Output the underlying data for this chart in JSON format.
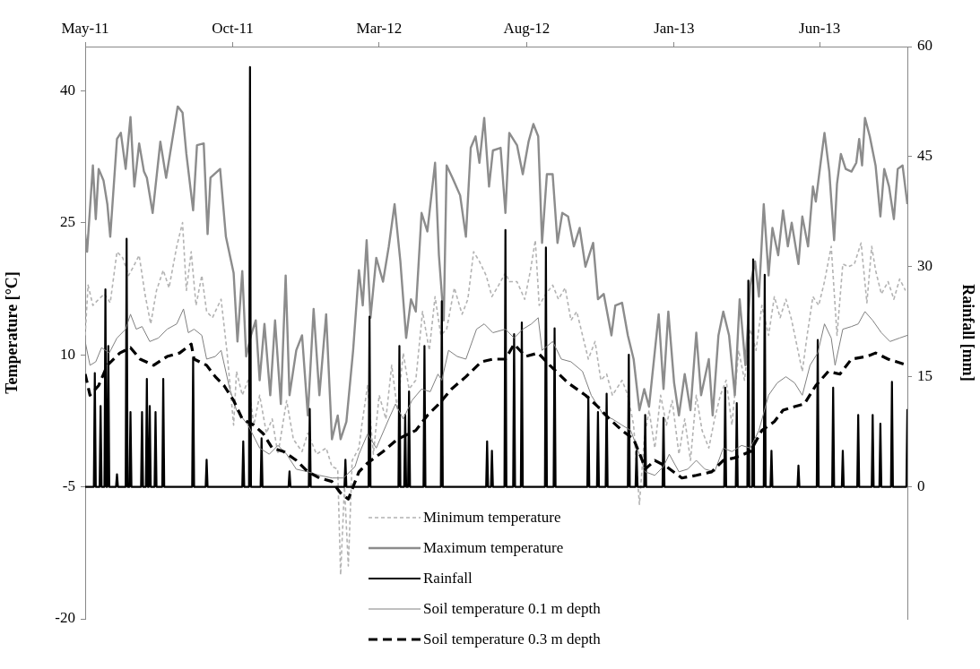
{
  "chart_data": {
    "type": "line",
    "xlabel": null,
    "ylabel": "Temperature [°C]",
    "y2label": "Rainfall [mm]",
    "xlim": [
      "2011-05-01",
      "2013-08-31"
    ],
    "xticks": [
      {
        "value": "2011-05-01",
        "label": "May-11"
      },
      {
        "value": "2011-10-01",
        "label": "Oct-11"
      },
      {
        "value": "2012-03-01",
        "label": "Mar-12"
      },
      {
        "value": "2012-08-01",
        "label": "Aug-12"
      },
      {
        "value": "2013-01-01",
        "label": "Jan-13"
      },
      {
        "value": "2013-06-01",
        "label": "Jun-13"
      }
    ],
    "ylim": [
      -20,
      45
    ],
    "yticks": [
      -20,
      -5,
      10,
      25,
      40
    ],
    "y2lim": [
      -18,
      60
    ],
    "y2ticks": [
      0,
      15,
      30,
      45,
      60
    ],
    "grid": false,
    "legend": "bottom",
    "series": [
      {
        "name": "Minimum temperature",
        "color": "#b3b3b3",
        "line_style": "dashed",
        "x": [
          "2011-05-01",
          "2011-05-04",
          "2011-05-09",
          "2011-05-15",
          "2011-05-21",
          "2011-05-27",
          "2011-06-03",
          "2011-06-09",
          "2011-06-15",
          "2011-06-20",
          "2011-06-26",
          "2011-07-02",
          "2011-07-08",
          "2011-07-14",
          "2011-07-21",
          "2011-07-27",
          "2011-08-04",
          "2011-08-10",
          "2011-08-14",
          "2011-08-19",
          "2011-08-24",
          "2011-08-30",
          "2011-09-04",
          "2011-09-10",
          "2011-09-19",
          "2011-09-25",
          "2011-10-02",
          "2011-10-05",
          "2011-10-11",
          "2011-10-17",
          "2011-10-23",
          "2011-10-29",
          "2011-11-05",
          "2011-11-11",
          "2011-11-17",
          "2011-11-26",
          "2011-12-03",
          "2011-12-12",
          "2011-12-18",
          "2011-12-27",
          "2012-01-06",
          "2012-01-12",
          "2012-01-18",
          "2012-01-21",
          "2012-01-25",
          "2012-01-29",
          "2012-02-02",
          "2012-02-09",
          "2012-02-12",
          "2012-02-18",
          "2012-02-24",
          "2012-03-01",
          "2012-03-08",
          "2012-03-14",
          "2012-03-20",
          "2012-03-26",
          "2012-04-01",
          "2012-04-08",
          "2012-04-15",
          "2012-04-22",
          "2012-04-28",
          "2012-05-04",
          "2012-05-10",
          "2012-05-18",
          "2012-05-26",
          "2012-06-01",
          "2012-06-07",
          "2012-06-13",
          "2012-06-20",
          "2012-06-26",
          "2012-07-03",
          "2012-07-10",
          "2012-07-14",
          "2012-07-22",
          "2012-07-30",
          "2012-08-05",
          "2012-08-10",
          "2012-08-14",
          "2012-08-21",
          "2012-08-28",
          "2012-09-03",
          "2012-09-10",
          "2012-09-16",
          "2012-09-22",
          "2012-09-28",
          "2012-10-04",
          "2012-10-11",
          "2012-10-17",
          "2012-10-23",
          "2012-10-29",
          "2012-11-08",
          "2012-11-14",
          "2012-11-20",
          "2012-11-26",
          "2012-12-01",
          "2012-12-06",
          "2012-12-12",
          "2012-12-18",
          "2012-12-24",
          "2012-12-30",
          "2013-01-06",
          "2013-01-12",
          "2013-01-18",
          "2013-01-24",
          "2013-01-30",
          "2013-02-06",
          "2013-02-12",
          "2013-02-18",
          "2013-02-24",
          "2013-03-02",
          "2013-03-09",
          "2013-03-15",
          "2013-03-21",
          "2013-03-27",
          "2013-04-02",
          "2013-04-09",
          "2013-04-15",
          "2013-04-21",
          "2013-04-27",
          "2013-05-03",
          "2013-05-10",
          "2013-05-14",
          "2013-05-19",
          "2013-05-25",
          "2013-05-31",
          "2013-06-06",
          "2013-06-13",
          "2013-06-19",
          "2013-06-25",
          "2013-07-01",
          "2013-07-07",
          "2013-07-14",
          "2013-07-20",
          "2013-07-25",
          "2013-07-29",
          "2013-08-04",
          "2013-08-11",
          "2013-08-17",
          "2013-08-23",
          "2013-08-29"
        ],
        "values": [
          12.2,
          17.9,
          15.6,
          16.3,
          16.9,
          15.9,
          21.7,
          21,
          19,
          20,
          21.3,
          16.9,
          13.5,
          17.3,
          19.6,
          17.6,
          22.3,
          25,
          17.3,
          21.7,
          15.6,
          19,
          14.9,
          14.2,
          16.3,
          10.5,
          2,
          8.1,
          5.4,
          7.1,
          2,
          5.4,
          1.1,
          2.7,
          -1.3,
          4.8,
          0.4,
          -1,
          1.1,
          -1.3,
          -0.6,
          -2.7,
          -3,
          -15,
          -5,
          -14,
          -2,
          -0.6,
          2,
          6.5,
          -1.3,
          5.4,
          2.7,
          8.8,
          3.7,
          10.2,
          6.1,
          7.1,
          14.9,
          10.5,
          16.6,
          12.2,
          12.9,
          17.6,
          14.6,
          16.3,
          21.7,
          20.6,
          19,
          16.6,
          17.9,
          19.3,
          18.3,
          18.3,
          16.3,
          19.6,
          23,
          15.6,
          16.9,
          17.9,
          16.3,
          17.6,
          13.9,
          14.9,
          12.2,
          9.5,
          11.5,
          7.1,
          7.8,
          5.4,
          7.1,
          5.4,
          2,
          -7,
          0.4,
          3.7,
          -0.6,
          5.4,
          2,
          4.8,
          -1.3,
          2.7,
          -2,
          5.4,
          1.4,
          -0.6,
          2.7,
          5.4,
          7.1,
          2,
          10.5,
          7.1,
          12.9,
          10.5,
          15.6,
          12.2,
          16.6,
          14.2,
          16.3,
          13.9,
          10.2,
          8.1,
          12.2,
          16.6,
          15.6,
          18.3,
          22.3,
          12.2,
          20.3,
          20,
          20.3,
          22.7,
          15.9,
          22.3,
          19.6,
          16.9,
          18.3,
          16.3,
          18.6,
          17.3
        ]
      },
      {
        "name": "Maximum temperature",
        "color": "#8c8c8c",
        "line_style": "solid",
        "x": [
          "2011-05-01",
          "2011-05-03",
          "2011-05-09",
          "2011-05-12",
          "2011-05-15",
          "2011-05-20",
          "2011-05-24",
          "2011-05-27",
          "2011-06-03",
          "2011-06-07",
          "2011-06-12",
          "2011-06-17",
          "2011-06-21",
          "2011-06-26",
          "2011-07-01",
          "2011-07-04",
          "2011-07-10",
          "2011-07-18",
          "2011-07-24",
          "2011-07-28",
          "2011-08-05",
          "2011-08-10",
          "2011-08-14",
          "2011-08-21",
          "2011-08-25",
          "2011-09-01",
          "2011-09-05",
          "2011-09-08",
          "2011-09-18",
          "2011-09-24",
          "2011-10-02",
          "2011-10-06",
          "2011-10-11",
          "2011-10-15",
          "2011-10-20",
          "2011-10-25",
          "2011-10-29",
          "2011-11-03",
          "2011-11-09",
          "2011-11-14",
          "2011-11-20",
          "2011-11-25",
          "2011-11-29",
          "2011-12-06",
          "2011-12-12",
          "2011-12-18",
          "2011-12-24",
          "2011-12-30",
          "2012-01-06",
          "2012-01-12",
          "2012-01-18",
          "2012-01-21",
          "2012-01-27",
          "2012-02-03",
          "2012-02-09",
          "2012-02-13",
          "2012-02-17",
          "2012-02-21",
          "2012-02-27",
          "2012-03-05",
          "2012-03-11",
          "2012-03-17",
          "2012-03-23",
          "2012-03-29",
          "2012-04-03",
          "2012-04-08",
          "2012-04-14",
          "2012-04-20",
          "2012-04-28",
          "2012-05-02",
          "2012-05-07",
          "2012-05-10",
          "2012-05-16",
          "2012-05-24",
          "2012-05-30",
          "2012-06-04",
          "2012-06-09",
          "2012-06-13",
          "2012-06-18",
          "2012-06-23",
          "2012-06-27",
          "2012-07-05",
          "2012-07-10",
          "2012-07-14",
          "2012-07-22",
          "2012-07-28",
          "2012-08-03",
          "2012-08-08",
          "2012-08-13",
          "2012-08-17",
          "2012-08-22",
          "2012-08-28",
          "2012-09-02",
          "2012-09-07",
          "2012-09-13",
          "2012-09-19",
          "2012-09-25",
          "2012-10-01",
          "2012-10-09",
          "2012-10-14",
          "2012-10-20",
          "2012-10-28",
          "2012-11-01",
          "2012-11-08",
          "2012-11-14",
          "2012-11-20",
          "2012-11-26",
          "2012-12-01",
          "2012-12-06",
          "2012-12-16",
          "2012-12-21",
          "2012-12-26",
          "2013-01-01",
          "2013-01-06",
          "2013-01-12",
          "2013-01-18",
          "2013-01-24",
          "2013-01-29",
          "2013-02-06",
          "2013-02-10",
          "2013-02-16",
          "2013-02-21",
          "2013-02-27",
          "2013-03-05",
          "2013-03-10",
          "2013-03-16",
          "2013-03-21",
          "2013-03-26",
          "2013-03-30",
          "2013-04-04",
          "2013-04-09",
          "2013-04-13",
          "2013-04-19",
          "2013-04-24",
          "2013-04-29",
          "2013-05-03",
          "2013-05-10",
          "2013-05-14",
          "2013-05-20",
          "2013-05-25",
          "2013-05-28",
          "2013-06-02",
          "2013-06-06",
          "2013-06-11",
          "2013-06-16",
          "2013-06-19",
          "2013-06-23",
          "2013-06-28",
          "2013-07-04",
          "2013-07-09",
          "2013-07-12",
          "2013-07-15",
          "2013-07-18",
          "2013-07-23",
          "2013-07-29",
          "2013-08-03",
          "2013-08-07",
          "2013-08-12",
          "2013-08-17",
          "2013-08-21",
          "2013-08-26",
          "2013-08-31"
        ],
        "values": [
          23.7,
          21.7,
          31.5,
          25.4,
          31.1,
          29.8,
          27.1,
          23.4,
          34.5,
          35.2,
          31.1,
          37,
          29.1,
          34,
          30.8,
          30.1,
          26.1,
          34.2,
          30.1,
          32.8,
          38.2,
          37.5,
          32.8,
          26.4,
          33.8,
          34,
          23.7,
          30.1,
          31.1,
          23.4,
          19.3,
          11.5,
          19.5,
          9.8,
          12.2,
          13.9,
          7.1,
          13.5,
          5.4,
          13.9,
          4.4,
          19,
          5.4,
          10.5,
          12.2,
          3.1,
          15.2,
          5.4,
          14.6,
          0.4,
          3.1,
          0.4,
          2.4,
          10.5,
          19.6,
          15.6,
          23,
          14.2,
          21,
          18.3,
          22.3,
          27.1,
          20.6,
          11.9,
          16.3,
          14.9,
          26.1,
          24,
          31.8,
          21.3,
          13.9,
          31.5,
          30.1,
          28.1,
          23.4,
          33.5,
          34.8,
          31.8,
          36.9,
          29.1,
          33.2,
          33.5,
          26.1,
          35.2,
          33.8,
          30.5,
          34.2,
          36.2,
          34.8,
          22.7,
          30.5,
          30.5,
          22.7,
          26.1,
          25.7,
          22.3,
          24.4,
          20,
          22.7,
          16.3,
          16.9,
          12.2,
          15.6,
          15.9,
          12.2,
          9.5,
          3.7,
          6.1,
          4.1,
          14.6,
          6.1,
          14.9,
          6.8,
          3.1,
          7.8,
          3.7,
          12.5,
          5.4,
          9.5,
          3.1,
          12.2,
          14.9,
          12.2,
          5.4,
          16.3,
          8.8,
          17.9,
          20.6,
          16.6,
          27.1,
          19,
          24.4,
          21.3,
          26.4,
          22.3,
          25,
          20.3,
          25.7,
          22.3,
          29.1,
          27.4,
          31.8,
          35.2,
          30.8,
          23,
          29.4,
          32.8,
          31.1,
          30.8,
          31.8,
          34.5,
          31.5,
          36.9,
          34.8,
          31.5,
          25.7,
          31.1,
          29.1,
          25.4,
          31.1,
          31.5,
          27.1
        ]
      },
      {
        "name": "Rainfall",
        "color": "#000000",
        "line_style": "solid",
        "axis": "y2",
        "x": [
          "2011-05-01",
          "2011-05-10",
          "2011-05-11",
          "2011-05-12",
          "2011-05-16",
          "2011-05-17",
          "2011-05-18",
          "2011-05-21",
          "2011-05-22",
          "2011-05-23",
          "2011-05-24",
          "2011-05-25",
          "2011-05-26",
          "2011-06-02",
          "2011-06-03",
          "2011-06-04",
          "2011-06-12",
          "2011-06-13",
          "2011-06-14",
          "2011-06-16",
          "2011-06-17",
          "2011-06-18",
          "2011-06-28",
          "2011-06-29",
          "2011-06-30",
          "2011-07-03",
          "2011-07-04",
          "2011-07-05",
          "2011-07-06",
          "2011-07-07",
          "2011-07-08",
          "2011-07-12",
          "2011-07-13",
          "2011-07-14",
          "2011-07-20",
          "2011-07-21",
          "2011-07-22",
          "2011-08-20",
          "2011-08-21",
          "2011-08-22",
          "2011-09-03",
          "2011-09-04",
          "2011-09-05",
          "2011-10-11",
          "2011-10-12",
          "2011-10-13",
          "2011-10-18",
          "2011-10-19",
          "2011-10-20",
          "2011-10-30",
          "2011-10-31",
          "2011-11-01",
          "2011-11-28",
          "2011-11-29",
          "2011-11-30",
          "2011-12-19",
          "2011-12-20",
          "2011-12-21",
          "2012-01-25",
          "2012-01-26",
          "2012-01-27",
          "2012-02-19",
          "2012-02-20",
          "2012-02-21",
          "2012-03-21",
          "2012-03-22",
          "2012-03-23",
          "2012-03-27",
          "2012-03-28",
          "2012-03-29",
          "2012-03-31",
          "2012-04-01",
          "2012-04-02",
          "2012-04-16",
          "2012-04-17",
          "2012-04-18",
          "2012-05-04",
          "2012-05-05",
          "2012-05-06",
          "2012-06-20",
          "2012-06-21",
          "2012-06-22",
          "2012-06-25",
          "2012-06-26",
          "2012-06-27",
          "2012-07-09",
          "2012-07-10",
          "2012-07-11",
          "2012-07-18",
          "2012-07-19",
          "2012-07-20",
          "2012-07-26",
          "2012-07-27",
          "2012-07-28",
          "2012-08-20",
          "2012-08-21",
          "2012-08-22",
          "2012-08-29",
          "2012-08-30",
          "2012-08-31",
          "2012-10-03",
          "2012-10-04",
          "2012-10-05",
          "2012-10-13",
          "2012-10-14",
          "2012-10-15",
          "2012-10-22",
          "2012-10-23",
          "2012-10-24",
          "2012-11-14",
          "2012-11-15",
          "2012-11-16",
          "2012-11-22",
          "2012-11-23",
          "2012-11-24",
          "2012-12-01",
          "2012-12-02",
          "2012-12-03",
          "2012-12-20",
          "2012-12-21",
          "2012-12-22",
          "2013-02-22",
          "2013-02-23",
          "2013-02-24",
          "2013-03-06",
          "2013-03-07",
          "2013-03-08",
          "2013-03-18",
          "2013-03-19",
          "2013-03-20",
          "2013-03-23",
          "2013-03-24",
          "2013-03-25",
          "2013-04-04",
          "2013-04-05",
          "2013-04-06",
          "2013-04-11",
          "2013-04-12",
          "2013-04-13",
          "2013-05-09",
          "2013-05-10",
          "2013-05-11",
          "2013-05-29",
          "2013-05-30",
          "2013-05-31",
          "2013-06-14",
          "2013-06-15",
          "2013-06-16",
          "2013-06-24",
          "2013-06-25",
          "2013-06-26",
          "2013-07-10",
          "2013-07-11",
          "2013-07-12",
          "2013-07-25",
          "2013-07-26",
          "2013-07-27",
          "2013-08-02",
          "2013-08-03",
          "2013-08-04",
          "2013-08-14",
          "2013-08-15",
          "2013-08-16",
          "2013-08-30",
          "2013-08-31"
        ],
        "values": [
          0,
          0,
          15.5,
          0,
          0,
          11,
          0,
          0,
          26.9,
          0,
          0,
          19.2,
          0,
          0,
          1.7,
          0,
          0,
          33.8,
          0,
          0,
          10.2,
          0,
          0,
          10.2,
          0,
          0,
          14.7,
          0,
          0,
          11,
          0,
          0,
          10.2,
          0,
          0,
          14.7,
          0,
          0,
          17.5,
          0,
          0,
          3.7,
          0,
          0,
          6.2,
          0,
          0,
          57.2,
          0,
          0,
          6.6,
          0,
          0,
          2.1,
          0,
          0,
          10.6,
          0,
          0,
          3.7,
          0,
          0,
          23.2,
          0,
          0,
          19.2,
          0,
          0,
          9.8,
          0,
          0,
          13,
          0,
          0,
          19.2,
          0,
          0,
          25.3,
          0,
          0,
          6.2,
          0,
          0,
          4.9,
          0,
          0,
          35,
          0,
          0,
          20.8,
          0,
          0,
          22.4,
          0,
          0,
          32.6,
          0,
          0,
          21.6,
          0,
          0,
          12.3,
          0,
          0,
          10.2,
          0,
          0,
          12.7,
          0,
          0,
          18,
          0,
          0,
          4.9,
          0,
          0,
          9.8,
          0,
          0,
          9.4,
          0,
          0,
          13.5,
          0,
          0,
          11.4,
          0,
          0,
          28.1,
          0,
          0,
          31,
          0,
          0,
          28.9,
          0,
          0,
          4.9,
          0,
          0,
          2.9,
          0,
          0,
          20,
          0,
          0,
          13.5,
          0,
          0,
          4.9,
          0,
          0,
          9.8,
          0,
          0,
          9.8,
          0,
          0,
          8.6,
          0,
          0,
          14.3,
          0,
          0,
          10.6
        ]
      },
      {
        "name": "Soil temperature 0.1 m depth",
        "color": "#808080",
        "line_style": "solid",
        "x": [
          "2011-05-01",
          "2011-05-06",
          "2011-05-12",
          "2011-05-18",
          "2011-05-26",
          "2011-06-03",
          "2011-06-12",
          "2011-06-17",
          "2011-06-23",
          "2011-06-29",
          "2011-07-07",
          "2011-07-16",
          "2011-07-25",
          "2011-08-04",
          "2011-08-11",
          "2011-08-16",
          "2011-08-22",
          "2011-08-30",
          "2011-09-04",
          "2011-09-13",
          "2011-09-19",
          "2011-09-28",
          "2011-10-05",
          "2011-10-17",
          "2011-10-29",
          "2011-11-08",
          "2011-11-17",
          "2011-11-26",
          "2011-12-06",
          "2011-12-18",
          "2011-12-30",
          "2012-01-12",
          "2012-01-24",
          "2012-02-05",
          "2012-02-09",
          "2012-02-18",
          "2012-02-27",
          "2012-03-11",
          "2012-03-18",
          "2012-03-26",
          "2012-04-04",
          "2012-04-14",
          "2012-04-23",
          "2012-05-01",
          "2012-05-05",
          "2012-05-12",
          "2012-05-21",
          "2012-05-30",
          "2012-06-10",
          "2012-06-18",
          "2012-06-27",
          "2012-07-10",
          "2012-07-19",
          "2012-07-28",
          "2012-08-06",
          "2012-08-13",
          "2012-08-17",
          "2012-08-28",
          "2012-09-06",
          "2012-09-16",
          "2012-09-28",
          "2012-10-07",
          "2012-10-20",
          "2012-10-29",
          "2012-11-08",
          "2012-11-17",
          "2012-11-26",
          "2012-12-02",
          "2012-12-12",
          "2012-12-21",
          "2012-12-27",
          "2013-01-06",
          "2013-01-15",
          "2013-01-24",
          "2013-02-02",
          "2013-02-12",
          "2013-02-21",
          "2013-03-02",
          "2013-03-12",
          "2013-03-21",
          "2013-03-30",
          "2013-04-09",
          "2013-04-18",
          "2013-04-27",
          "2013-05-06",
          "2013-05-14",
          "2013-05-22",
          "2013-05-30",
          "2013-06-06",
          "2013-06-13",
          "2013-06-17",
          "2013-06-25",
          "2013-07-04",
          "2013-07-11",
          "2013-07-18",
          "2013-07-26",
          "2013-08-04",
          "2013-08-13",
          "2013-08-23",
          "2013-08-31"
        ],
        "values": [
          11.5,
          8.8,
          9.2,
          10.8,
          10.2,
          11.9,
          12.9,
          14.6,
          12.9,
          13.2,
          11.5,
          11.9,
          12.9,
          13.5,
          15.2,
          12.5,
          12.9,
          12.2,
          9.5,
          9.8,
          10.5,
          6.1,
          3.7,
          2,
          -0.6,
          -1.3,
          -0.3,
          -1.3,
          -3,
          -3.3,
          -3.7,
          -4,
          -4,
          -2.7,
          -1.3,
          1,
          -0.6,
          2.7,
          4.4,
          2.7,
          4.8,
          6.1,
          5.8,
          7.8,
          7.1,
          10.5,
          9.8,
          9.5,
          12.9,
          13.5,
          12.5,
          12.9,
          11.9,
          12.9,
          13.5,
          14.2,
          10.5,
          11.5,
          9.5,
          9.2,
          8.1,
          5.4,
          3.1,
          2.7,
          2,
          1.4,
          -1.3,
          -3.3,
          -3.7,
          -2.7,
          -1.3,
          -3.3,
          -3,
          -2,
          -3,
          -3.3,
          -0.6,
          -1,
          -0.3,
          -0.6,
          1.4,
          5.4,
          6.8,
          7.5,
          6.8,
          5.4,
          8.8,
          10.2,
          13.5,
          11.9,
          8.8,
          12.9,
          13.2,
          13.5,
          14.9,
          13.9,
          12.5,
          11.5,
          11.9,
          12.2
        ]
      },
      {
        "name": "Soil temperature 0.3 m depth",
        "color": "#000000",
        "line_style": "dashed",
        "x": [
          "2011-05-01",
          "2011-05-06",
          "2011-05-15",
          "2011-05-24",
          "2011-06-06",
          "2011-06-17",
          "2011-06-27",
          "2011-07-11",
          "2011-07-25",
          "2011-08-07",
          "2011-08-19",
          "2011-08-22",
          "2011-09-04",
          "2011-09-13",
          "2011-09-22",
          "2011-10-02",
          "2011-10-11",
          "2011-10-23",
          "2011-11-02",
          "2011-11-11",
          "2011-11-23",
          "2011-12-06",
          "2011-12-18",
          "2011-12-30",
          "2012-01-12",
          "2012-01-21",
          "2012-01-29",
          "2012-02-09",
          "2012-02-18",
          "2012-03-05",
          "2012-03-20",
          "2012-04-08",
          "2012-04-20",
          "2012-05-02",
          "2012-05-15",
          "2012-05-30",
          "2012-06-15",
          "2012-06-27",
          "2012-07-10",
          "2012-07-19",
          "2012-07-31",
          "2012-08-13",
          "2012-08-25",
          "2012-09-13",
          "2012-10-01",
          "2012-10-14",
          "2012-10-26",
          "2012-11-08",
          "2012-11-20",
          "2012-11-29",
          "2012-12-02",
          "2012-12-12",
          "2012-12-24",
          "2013-01-09",
          "2013-01-24",
          "2013-02-09",
          "2013-02-21",
          "2013-03-05",
          "2013-03-21",
          "2013-04-02",
          "2013-04-15",
          "2013-04-24",
          "2013-05-06",
          "2013-05-16",
          "2013-05-28",
          "2013-06-10",
          "2013-06-22",
          "2013-07-04",
          "2013-07-20",
          "2013-07-29",
          "2013-08-11",
          "2013-08-20",
          "2013-08-31"
        ],
        "values": [
          7.8,
          5.4,
          6.5,
          8.8,
          10.2,
          10.8,
          9.5,
          8.8,
          9.8,
          10.2,
          11.2,
          9.5,
          8.8,
          7.5,
          6.5,
          4.8,
          2.7,
          2,
          1,
          -0.6,
          -1,
          -2,
          -3.3,
          -4,
          -4.4,
          -5.7,
          -6.4,
          -3.3,
          -2.3,
          -1,
          0.4,
          1.4,
          3.1,
          4.4,
          6.1,
          7.5,
          9.2,
          9.5,
          9.5,
          11.2,
          9.8,
          10.2,
          8.8,
          6.8,
          5.4,
          4.1,
          2.7,
          1.4,
          0.4,
          -2,
          -3,
          -2,
          -2.7,
          -4,
          -3.7,
          -3.3,
          -2,
          -1.7,
          -1,
          1.4,
          2.4,
          3.7,
          4.1,
          4.4,
          6.5,
          8.1,
          7.8,
          9.5,
          9.8,
          10.2,
          9.5,
          9.2,
          8.8
        ]
      }
    ]
  }
}
